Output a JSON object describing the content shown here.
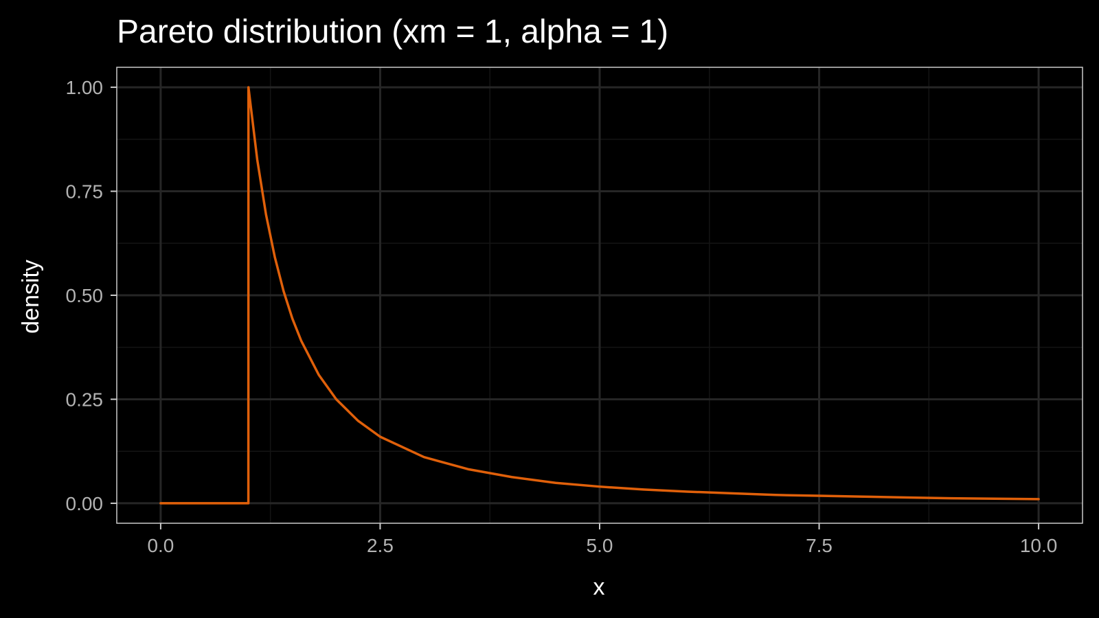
{
  "chart_data": {
    "type": "line",
    "title": "Pareto distribution (xm = 1, alpha = 1)",
    "xlabel": "x",
    "ylabel": "density",
    "xlim": [
      0,
      10
    ],
    "ylim": [
      0,
      1
    ],
    "x_ticks": [
      0,
      2.5,
      5,
      7.5,
      10
    ],
    "x_tick_labels": [
      "0.0",
      "2.5",
      "5.0",
      "7.5",
      "10.0"
    ],
    "y_ticks": [
      0,
      0.25,
      0.5,
      0.75,
      1
    ],
    "y_tick_labels": [
      "0.00",
      "0.25",
      "0.50",
      "0.75",
      "1.00"
    ],
    "grid": true,
    "legend": "none",
    "series": [
      {
        "color": "#E0600A",
        "x": [
          0,
          0.999,
          1,
          1.1,
          1.2,
          1.3,
          1.4,
          1.5,
          1.6,
          1.8,
          2,
          2.25,
          2.5,
          3,
          3.5,
          4,
          4.5,
          5,
          5.5,
          6,
          6.5,
          7,
          7.5,
          8,
          8.5,
          9,
          9.5,
          10
        ],
        "y": [
          0,
          0,
          1,
          0.826,
          0.694,
          0.592,
          0.51,
          0.444,
          0.391,
          0.309,
          0.25,
          0.198,
          0.16,
          0.111,
          0.082,
          0.063,
          0.049,
          0.04,
          0.033,
          0.028,
          0.024,
          0.02,
          0.018,
          0.016,
          0.014,
          0.012,
          0.011,
          0.01
        ]
      }
    ]
  },
  "colors": {
    "background": "#000000",
    "panel_border": "#cccccc",
    "grid_major": "#262626",
    "grid_minor": "#141414",
    "line": "#E0600A"
  }
}
